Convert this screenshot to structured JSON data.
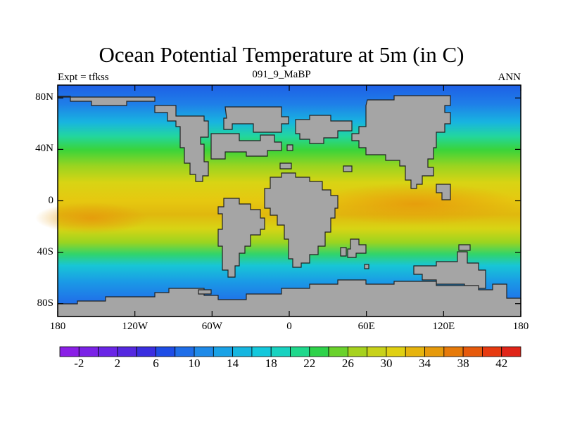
{
  "title": "Ocean Potential Temperature at 5m (in C)",
  "subtitle_left": "Expt = tfkss",
  "subtitle_center": "091_9_MaBP",
  "subtitle_right": "ANN",
  "lat_ticks": [
    "80N",
    "40N",
    "0",
    "40S",
    "80S"
  ],
  "lat_values": [
    80,
    40,
    0,
    -40,
    -80
  ],
  "lon_ticks": [
    "180",
    "120W",
    "60W",
    "0",
    "60E",
    "120E",
    "180"
  ],
  "lon_values": [
    -180,
    -120,
    -60,
    0,
    60,
    120,
    180
  ],
  "colorbar": {
    "labels": [
      "-2",
      "2",
      "6",
      "10",
      "14",
      "18",
      "22",
      "26",
      "30",
      "34",
      "38",
      "42"
    ],
    "colors": [
      "#8a1fe6",
      "#7a22e6",
      "#6a25e6",
      "#5528e0",
      "#3a2ee0",
      "#1e4de6",
      "#1f6ee8",
      "#1f8ae8",
      "#1aa2e6",
      "#16b6e0",
      "#14c8dc",
      "#18d2c0",
      "#1fd88c",
      "#2ed24a",
      "#6ad22c",
      "#a6d21e",
      "#c8d21a",
      "#e0d012",
      "#e6b40e",
      "#e69a0c",
      "#e67a0a",
      "#e65a0c",
      "#e63a10",
      "#e02418"
    ]
  },
  "land_color": "#a5a5a5"
}
